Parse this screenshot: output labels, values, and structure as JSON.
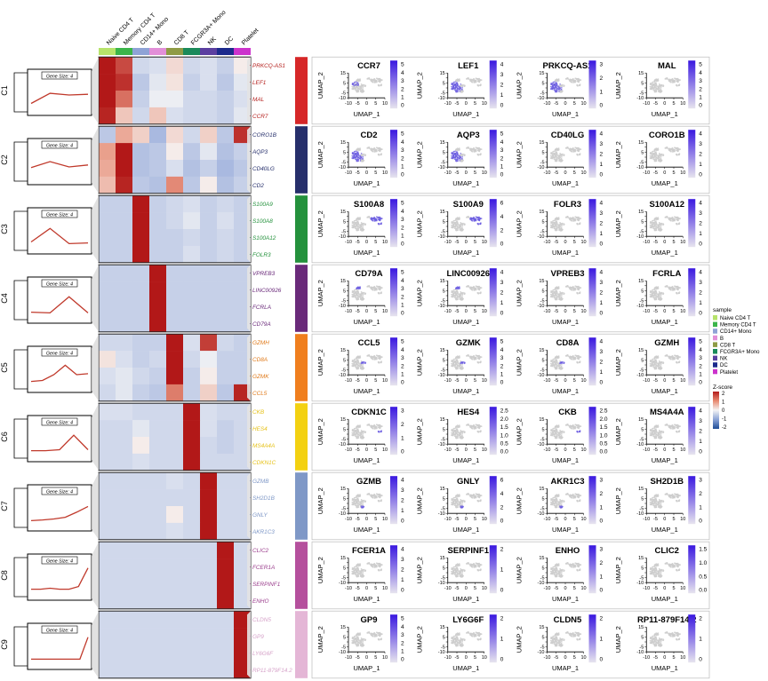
{
  "chart_data": {
    "type": "heatmap",
    "samples": [
      "Naive CD4 T",
      "Memory CD4 T",
      "CD14+ Mono",
      "B",
      "CD8 T",
      "FCGR3A+ Mono",
      "NK",
      "DC",
      "Platelet"
    ],
    "sample_colors": [
      "#b7e36b",
      "#3bb54a",
      "#8fa3d6",
      "#e28fd8",
      "#8f9b45",
      "#1a8a5a",
      "#5b3fa0",
      "#1c2a8c",
      "#cc33cc"
    ],
    "legend_title": "sample",
    "zscore_title": "Z-score",
    "zscore_ticks": [
      "2",
      "1",
      "0",
      "-1",
      "-2"
    ],
    "zscore_colors": [
      "#b31b1b",
      "#e88a70",
      "#f4f4f4",
      "#8aa3d6",
      "#1e4c96"
    ],
    "gene_size_label": "Gene Size: 4",
    "umap_xlabel": "UMAP_1",
    "umap_ylabel": "UMAP_2",
    "umap_xticks": [
      "-10",
      "-5",
      "0",
      "5",
      "10"
    ],
    "umap_yticks": [
      "15",
      "10",
      "5",
      "0",
      "-5",
      "-10"
    ],
    "clusters": [
      {
        "name": "C1",
        "color": "#d62728",
        "gene_color": "#b5221f",
        "genes": [
          "PRKCQ-AS1",
          "LEF1",
          "MAL",
          "CCR7"
        ],
        "profile": [
          0.25,
          0.55,
          0.5,
          0.52
        ],
        "heat": [
          [
            2.0,
            1.6,
            -0.4,
            -0.3,
            0.3,
            -0.4,
            -0.3,
            -0.5,
            0.1
          ],
          [
            2.0,
            1.8,
            -0.6,
            -0.2,
            0.2,
            -0.5,
            -0.3,
            -0.6,
            -0.2
          ],
          [
            2.0,
            1.3,
            -0.5,
            -0.1,
            -0.1,
            -0.4,
            -0.4,
            -0.5,
            -0.3
          ],
          [
            1.9,
            0.5,
            -0.4,
            0.5,
            -0.3,
            -0.4,
            -0.4,
            -0.5,
            -0.2
          ]
        ],
        "umap": [
          {
            "gene": "CCR7",
            "ticks": [
              "5",
              "4",
              "3",
              "2",
              "1",
              "0"
            ],
            "hot": "memory"
          },
          {
            "gene": "LEF1",
            "ticks": [
              "4",
              "3",
              "2",
              "1",
              "0"
            ],
            "hot": "tcells"
          },
          {
            "gene": "PRKCQ-AS1",
            "ticks": [
              "3",
              "2",
              "1",
              "0"
            ],
            "hot": "tcells"
          },
          {
            "gene": "MAL",
            "ticks": [
              "5",
              "4",
              "3",
              "2",
              "1",
              "0"
            ],
            "hot": "none"
          }
        ]
      },
      {
        "name": "C2",
        "color": "#262f6b",
        "gene_color": "#262f6b",
        "genes": [
          "CORO1B",
          "AQP3",
          "CD40LG",
          "CD2"
        ],
        "profile": [
          0.4,
          0.58,
          0.42,
          0.48
        ],
        "heat": [
          [
            -0.6,
            0.8,
            0.4,
            -0.8,
            0.3,
            -0.4,
            0.4,
            -0.6,
            1.8
          ],
          [
            0.9,
            2.0,
            -0.7,
            -0.6,
            0.1,
            -0.6,
            -0.2,
            -0.7,
            -0.5
          ],
          [
            0.8,
            2.0,
            -0.7,
            -0.6,
            -0.3,
            -0.7,
            -0.5,
            -0.8,
            -0.6
          ],
          [
            0.6,
            1.9,
            -0.6,
            -0.7,
            1.1,
            -0.6,
            0.1,
            -0.7,
            -0.5
          ]
        ],
        "umap": [
          {
            "gene": "CD2",
            "ticks": [
              "5",
              "4",
              "3",
              "2",
              "1",
              "0"
            ],
            "hot": "tcells"
          },
          {
            "gene": "AQP3",
            "ticks": [
              "5",
              "4",
              "3",
              "2",
              "1",
              "0"
            ],
            "hot": "tcells"
          },
          {
            "gene": "CD40LG",
            "ticks": [
              "4",
              "3",
              "2",
              "1",
              "0"
            ],
            "hot": "none"
          },
          {
            "gene": "CORO1B",
            "ticks": [
              "4",
              "3",
              "2",
              "1",
              "0"
            ],
            "hot": "none"
          }
        ]
      },
      {
        "name": "C3",
        "color": "#24913c",
        "gene_color": "#24913c",
        "genes": [
          "S100A9",
          "S100A8",
          "S100A12",
          "FOLR3"
        ],
        "profile": [
          0.25,
          0.65,
          0.2,
          0.22
        ],
        "heat": [
          [
            -0.5,
            -0.5,
            2.0,
            -0.5,
            -0.4,
            -0.3,
            -0.5,
            -0.4,
            -0.5
          ],
          [
            -0.5,
            -0.5,
            2.0,
            -0.5,
            -0.4,
            -0.2,
            -0.5,
            -0.3,
            -0.5
          ],
          [
            -0.5,
            -0.5,
            2.0,
            -0.5,
            -0.5,
            -0.4,
            -0.5,
            -0.4,
            -0.5
          ],
          [
            -0.5,
            -0.5,
            2.0,
            -0.5,
            -0.5,
            -0.3,
            -0.5,
            -0.4,
            -0.5
          ]
        ],
        "umap": [
          {
            "gene": "S100A8",
            "ticks": [
              "5",
              "4",
              "3",
              "2",
              "1",
              "0"
            ],
            "hot": "mono"
          },
          {
            "gene": "S100A9",
            "ticks": [
              "6",
              "4",
              "2",
              "0"
            ],
            "hot": "mono"
          },
          {
            "gene": "FOLR3",
            "ticks": [
              "4",
              "3",
              "2",
              "1",
              "0"
            ],
            "hot": "none"
          },
          {
            "gene": "S100A12",
            "ticks": [
              "4",
              "3",
              "2",
              "1",
              "0"
            ],
            "hot": "none"
          }
        ]
      },
      {
        "name": "C4",
        "color": "#6a2a7a",
        "gene_color": "#6a2a7a",
        "genes": [
          "VPREB3",
          "LINC00926",
          "FCRLA",
          "CD79A"
        ],
        "profile": [
          0.22,
          0.2,
          0.68,
          0.2
        ],
        "heat": [
          [
            -0.5,
            -0.5,
            -0.5,
            2.0,
            -0.5,
            -0.5,
            -0.5,
            -0.5,
            -0.5
          ],
          [
            -0.5,
            -0.5,
            -0.5,
            2.0,
            -0.5,
            -0.5,
            -0.5,
            -0.5,
            -0.5
          ],
          [
            -0.5,
            -0.5,
            -0.5,
            2.0,
            -0.5,
            -0.5,
            -0.5,
            -0.5,
            -0.5
          ],
          [
            -0.5,
            -0.5,
            -0.5,
            2.0,
            -0.5,
            -0.5,
            -0.5,
            -0.5,
            -0.5
          ]
        ],
        "umap": [
          {
            "gene": "CD79A",
            "ticks": [
              "5",
              "4",
              "3",
              "2",
              "1",
              "0"
            ],
            "hot": "b"
          },
          {
            "gene": "LINC00926",
            "ticks": [
              "4",
              "3",
              "2",
              "1",
              "0"
            ],
            "hot": "b"
          },
          {
            "gene": "VPREB3",
            "ticks": [
              "4",
              "3",
              "2",
              "1",
              "0"
            ],
            "hot": "none"
          },
          {
            "gene": "FCRLA",
            "ticks": [
              "4",
              "3",
              "2",
              "1",
              "0"
            ],
            "hot": "none"
          }
        ]
      },
      {
        "name": "C5",
        "color": "#f07f1e",
        "gene_color": "#e07a1a",
        "genes": [
          "GZMH",
          "CD8A",
          "GZMK",
          "CCL5"
        ],
        "profile": [
          0.22,
          0.25,
          0.42,
          0.7,
          0.42,
          0.45
        ],
        "heat": [
          [
            -0.4,
            -0.4,
            -0.5,
            -0.5,
            2.0,
            -0.3,
            1.7,
            -0.4,
            -0.5
          ],
          [
            0.2,
            -0.3,
            -0.5,
            -0.4,
            2.0,
            -0.4,
            -0.1,
            -0.5,
            -0.5
          ],
          [
            -0.3,
            -0.2,
            -0.4,
            -0.5,
            2.0,
            -0.5,
            0.1,
            -0.5,
            -0.5
          ],
          [
            -0.4,
            -0.2,
            -0.5,
            -0.6,
            1.2,
            -0.5,
            0.4,
            -0.6,
            1.9
          ]
        ],
        "umap": [
          {
            "gene": "CCL5",
            "ticks": [
              "5",
              "4",
              "3",
              "2",
              "1",
              "0"
            ],
            "hot": "cd8"
          },
          {
            "gene": "GZMK",
            "ticks": [
              "5",
              "4",
              "3",
              "2",
              "1",
              "0"
            ],
            "hot": "cd8"
          },
          {
            "gene": "CD8A",
            "ticks": [
              "4",
              "3",
              "2",
              "1",
              "0"
            ],
            "hot": "cd8"
          },
          {
            "gene": "GZMH",
            "ticks": [
              "5",
              "4",
              "3",
              "2",
              "1",
              "0"
            ],
            "hot": "none"
          }
        ]
      },
      {
        "name": "C6",
        "color": "#f3d111",
        "gene_color": "#e6c21a",
        "genes": [
          "CKB",
          "HES4",
          "MS4A4A",
          "CDKN1C"
        ],
        "profile": [
          0.22,
          0.22,
          0.25,
          0.68,
          0.25
        ],
        "heat": [
          [
            -0.3,
            -0.3,
            -0.4,
            -0.4,
            -0.4,
            2.0,
            -0.3,
            -0.4,
            -0.4
          ],
          [
            -0.4,
            -0.4,
            -0.2,
            -0.4,
            -0.4,
            2.0,
            -0.3,
            -0.5,
            -0.4
          ],
          [
            -0.4,
            -0.4,
            0.1,
            -0.4,
            -0.4,
            2.0,
            -0.4,
            -0.5,
            -0.4
          ],
          [
            -0.4,
            -0.4,
            -0.3,
            -0.4,
            -0.4,
            2.0,
            -0.4,
            -0.4,
            -0.4
          ]
        ],
        "umap": [
          {
            "gene": "CDKN1C",
            "ticks": [
              "3",
              "2",
              "1",
              "0"
            ],
            "hot": "fmono"
          },
          {
            "gene": "HES4",
            "ticks": [
              "2.5",
              "2.0",
              "1.5",
              "1.0",
              "0.5",
              "0.0"
            ],
            "hot": "none"
          },
          {
            "gene": "CKB",
            "ticks": [
              "2.5",
              "2.0",
              "1.5",
              "1.0",
              "0.5",
              "0.0"
            ],
            "hot": "fmono"
          },
          {
            "gene": "MS4A4A",
            "ticks": [
              "4",
              "3",
              "2",
              "1",
              "0"
            ],
            "hot": "none"
          }
        ]
      },
      {
        "name": "C7",
        "color": "#7f98c7",
        "gene_color": "#7f98c7",
        "genes": [
          "GZMB",
          "SH2D1B",
          "GNLY",
          "AKR1C3"
        ],
        "profile": [
          0.2,
          0.22,
          0.25,
          0.3,
          0.45,
          0.62
        ],
        "heat": [
          [
            -0.4,
            -0.4,
            -0.4,
            -0.4,
            -0.3,
            -0.4,
            2.0,
            -0.4,
            -0.4
          ],
          [
            -0.4,
            -0.4,
            -0.4,
            -0.4,
            -0.4,
            -0.4,
            2.0,
            -0.4,
            -0.4
          ],
          [
            -0.4,
            -0.4,
            -0.4,
            -0.4,
            0.1,
            -0.4,
            2.0,
            -0.4,
            -0.4
          ],
          [
            -0.4,
            -0.4,
            -0.4,
            -0.4,
            -0.3,
            -0.4,
            2.0,
            -0.4,
            -0.4
          ]
        ],
        "umap": [
          {
            "gene": "GZMB",
            "ticks": [
              "4",
              "3",
              "2",
              "1",
              "0"
            ],
            "hot": "nk"
          },
          {
            "gene": "GNLY",
            "ticks": [
              "6",
              "4",
              "2",
              "0"
            ],
            "hot": "nk"
          },
          {
            "gene": "AKR1C3",
            "ticks": [
              "3",
              "2",
              "1",
              "0"
            ],
            "hot": "nk"
          },
          {
            "gene": "SH2D1B",
            "ticks": [
              "3",
              "2",
              "1",
              "0"
            ],
            "hot": "none"
          }
        ]
      },
      {
        "name": "C8",
        "color": "#b5509d",
        "gene_color": "#9b3f8d",
        "genes": [
          "CLIC2",
          "FCER1A",
          "SERPINF1",
          "ENHO"
        ],
        "profile": [
          0.22,
          0.22,
          0.25,
          0.22,
          0.22,
          0.3,
          0.85
        ],
        "heat": [
          [
            -0.4,
            -0.4,
            -0.4,
            -0.4,
            -0.4,
            -0.4,
            -0.4,
            2.0,
            -0.4
          ],
          [
            -0.4,
            -0.4,
            -0.4,
            -0.4,
            -0.4,
            -0.4,
            -0.4,
            2.0,
            -0.4
          ],
          [
            -0.4,
            -0.4,
            -0.4,
            -0.4,
            -0.4,
            -0.4,
            -0.4,
            2.0,
            -0.4
          ],
          [
            -0.4,
            -0.4,
            -0.4,
            -0.4,
            -0.4,
            -0.4,
            -0.4,
            2.0,
            -0.4
          ]
        ],
        "umap": [
          {
            "gene": "FCER1A",
            "ticks": [
              "4",
              "3",
              "2",
              "1",
              "0"
            ],
            "hot": "none"
          },
          {
            "gene": "SERPINF1",
            "ticks": [
              "2",
              "1",
              "0"
            ],
            "hot": "none"
          },
          {
            "gene": "ENHO",
            "ticks": [
              "3",
              "2",
              "1",
              "0"
            ],
            "hot": "none"
          },
          {
            "gene": "CLIC2",
            "ticks": [
              "1.5",
              "1.0",
              "0.5",
              "0.0"
            ],
            "hot": "none"
          }
        ]
      },
      {
        "name": "C9",
        "color": "#e4b6d6",
        "gene_color": "#d6a3c9",
        "genes": [
          "CLDN5",
          "GP9",
          "LY6G6F",
          "RP11-879F14.2"
        ],
        "profile": [
          0.2,
          0.2,
          0.2,
          0.2,
          0.2,
          0.2,
          0.2,
          0.85
        ],
        "heat": [
          [
            -0.4,
            -0.4,
            -0.4,
            -0.4,
            -0.4,
            -0.4,
            -0.4,
            -0.4,
            2.0
          ],
          [
            -0.4,
            -0.4,
            -0.4,
            -0.4,
            -0.4,
            -0.4,
            -0.4,
            -0.4,
            2.0
          ],
          [
            -0.4,
            -0.4,
            -0.4,
            -0.4,
            -0.4,
            -0.4,
            -0.4,
            -0.4,
            2.0
          ],
          [
            -0.4,
            -0.4,
            -0.4,
            -0.4,
            -0.4,
            -0.4,
            -0.4,
            -0.4,
            2.0
          ]
        ],
        "umap": [
          {
            "gene": "GP9",
            "ticks": [
              "5",
              "4",
              "3",
              "2",
              "1",
              "0"
            ],
            "hot": "none"
          },
          {
            "gene": "LY6G6F",
            "ticks": [
              "2",
              "1",
              "0"
            ],
            "hot": "none"
          },
          {
            "gene": "CLDN5",
            "ticks": [
              "2",
              "1",
              "0"
            ],
            "hot": "none"
          },
          {
            "gene": "RP11-879F14.2",
            "ticks": [
              "2",
              "1",
              "0"
            ],
            "hot": "none"
          }
        ]
      }
    ]
  }
}
